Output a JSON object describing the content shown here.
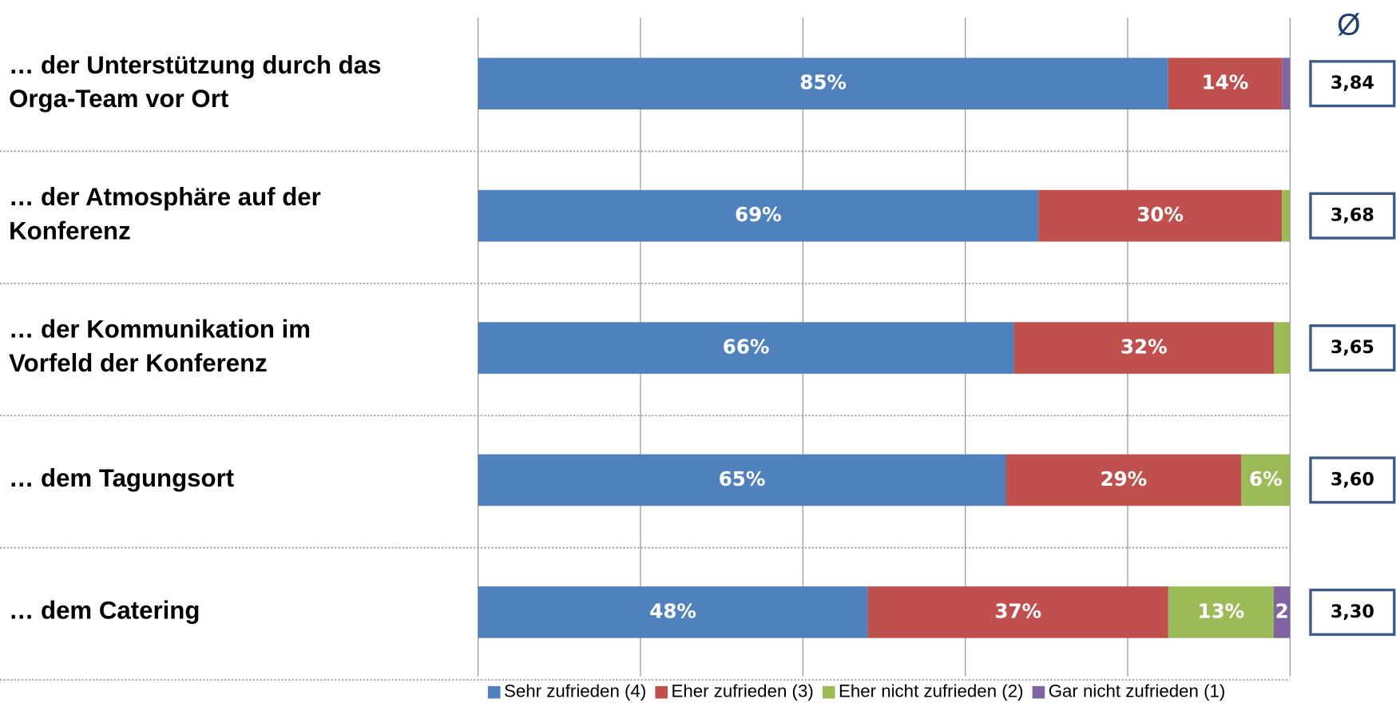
{
  "chart_data": {
    "type": "stacked_barh",
    "categories": [
      [
        "… der Unterstützung durch das",
        "Orga-Team vor Ort"
      ],
      [
        "… der Atmosphäre auf der",
        "Konferenz"
      ],
      [
        "… der Kommunikation im",
        "Vorfeld der Konferenz"
      ],
      [
        "… dem Tagungsort"
      ],
      [
        "… dem Catering"
      ]
    ],
    "series": [
      {
        "name": "Sehr zufrieden (4)",
        "color": "#4f81bd",
        "values": [
          85,
          69,
          66,
          65,
          48
        ],
        "value_labels": [
          "85%",
          "69%",
          "66%",
          "65%",
          "48%"
        ]
      },
      {
        "name": "Eher zufrieden (3)",
        "color": "#c0504d",
        "values": [
          14,
          30,
          32,
          29,
          37
        ],
        "value_labels": [
          "14%",
          "30%",
          "32%",
          "29%",
          "37%"
        ]
      },
      {
        "name": "Eher nicht zufrieden (2)",
        "color": "#9bbb59",
        "values": [
          0,
          1,
          2,
          6,
          13
        ],
        "value_labels": [
          null,
          null,
          null,
          "6%",
          "13%"
        ]
      },
      {
        "name": "Gar nicht zufrieden (1)",
        "color": "#8064a2",
        "values": [
          1,
          0,
          0,
          0,
          2
        ],
        "value_labels": [
          null,
          null,
          null,
          null,
          "2"
        ]
      }
    ],
    "xlim": [
      0,
      100
    ],
    "xticks": [
      0,
      20,
      40,
      60,
      80,
      100
    ],
    "grid": true,
    "average_header": "Ø",
    "average_labels": [
      "3,84",
      "3,68",
      "3,65",
      "3,60",
      "3,30"
    ]
  }
}
